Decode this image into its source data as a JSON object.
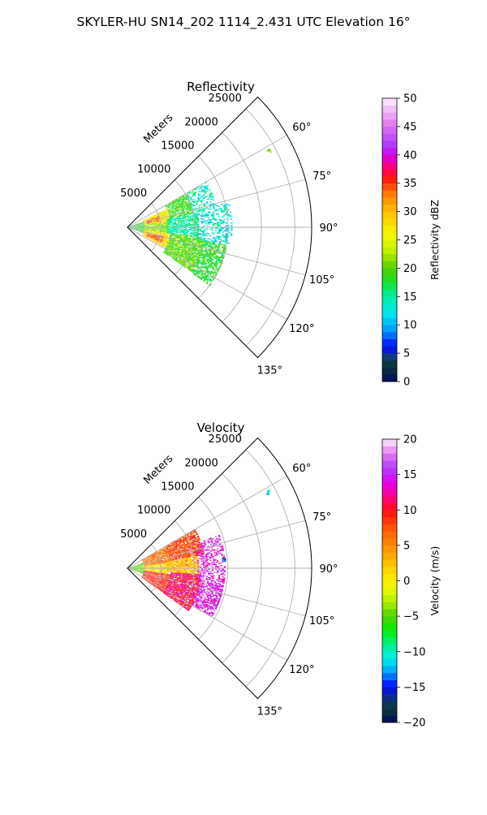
{
  "figure_title": "SKYLER-HU  SN14_202  1114_2.431 UTC Elevation 16°",
  "chart_data": [
    {
      "type": "heatmap",
      "subtype": "polar-sector (PPI)",
      "title": "Reflectivity",
      "radial_label": "Meters",
      "radial_ticks": [
        5000,
        10000,
        15000,
        20000,
        25000
      ],
      "radial_tick_labels": [
        "5000",
        "10000",
        "15000",
        "20000",
        "25000"
      ],
      "rlim": [
        0,
        27500
      ],
      "angle_ticks_deg": [
        60,
        75,
        90,
        105,
        120,
        135
      ],
      "angle_tick_labels": [
        "60°",
        "75°",
        "90°",
        "105°",
        "120°",
        "135°"
      ],
      "thetalim_deg": [
        45,
        135
      ],
      "grid": true,
      "colorbar": {
        "label": "Reflectivity dBZ",
        "min": 0,
        "max": 50,
        "ticks": [
          0,
          5,
          10,
          15,
          20,
          25,
          30,
          35,
          40,
          45,
          50
        ],
        "tick_labels": [
          "0",
          "5",
          "10",
          "15",
          "20",
          "25",
          "30",
          "35",
          "40",
          "45",
          "50"
        ],
        "stops": [
          {
            "v": 0,
            "c": "#050a5a"
          },
          {
            "v": 3,
            "c": "#0a3a3a"
          },
          {
            "v": 5,
            "c": "#1040a0"
          },
          {
            "v": 6,
            "c": "#0000ff"
          },
          {
            "v": 9,
            "c": "#0098ff"
          },
          {
            "v": 12,
            "c": "#00e8f0"
          },
          {
            "v": 15,
            "c": "#00f0a0"
          },
          {
            "v": 18,
            "c": "#20e020"
          },
          {
            "v": 20,
            "c": "#50d000"
          },
          {
            "v": 23,
            "c": "#c0f000"
          },
          {
            "v": 26,
            "c": "#f8f800"
          },
          {
            "v": 30,
            "c": "#ffc000"
          },
          {
            "v": 33,
            "c": "#ff8000"
          },
          {
            "v": 36,
            "c": "#ff1010"
          },
          {
            "v": 38,
            "c": "#ff0080"
          },
          {
            "v": 40,
            "c": "#d000f0"
          },
          {
            "v": 42,
            "c": "#b040ff"
          },
          {
            "v": 45,
            "c": "#e070f0"
          },
          {
            "v": 50,
            "c": "#fff0ff"
          }
        ]
      },
      "regions": [
        {
          "t0": 61,
          "t1": 62,
          "r0": 23500,
          "r1": 24200,
          "v": 21,
          "d": 0.8
        },
        {
          "t0": 70,
          "t1": 110,
          "r0": 0,
          "r1": 2500,
          "v": 18,
          "d": 0.9
        },
        {
          "t0": 65,
          "t1": 82,
          "r0": 2500,
          "r1": 6500,
          "v": 27,
          "d": 0.9
        },
        {
          "t0": 82,
          "t1": 98,
          "r0": 2500,
          "r1": 6000,
          "v": 22,
          "d": 0.9
        },
        {
          "t0": 98,
          "t1": 118,
          "r0": 2500,
          "r1": 6500,
          "v": 28,
          "d": 0.9
        },
        {
          "t0": 70,
          "t1": 80,
          "r0": 3000,
          "r1": 5000,
          "v": 35,
          "d": 0.5
        },
        {
          "t0": 104,
          "t1": 114,
          "r0": 3000,
          "r1": 5500,
          "v": 36,
          "d": 0.6
        },
        {
          "t0": 60,
          "t1": 78,
          "r0": 6500,
          "r1": 10000,
          "v": 19,
          "d": 0.8
        },
        {
          "t0": 78,
          "t1": 98,
          "r0": 6000,
          "r1": 10500,
          "v": 15,
          "d": 0.8
        },
        {
          "t0": 98,
          "t1": 125,
          "r0": 6500,
          "r1": 11500,
          "v": 20,
          "d": 0.85
        },
        {
          "t0": 60,
          "t1": 76,
          "r0": 10000,
          "r1": 13500,
          "v": 14,
          "d": 0.45
        },
        {
          "t0": 76,
          "t1": 100,
          "r0": 10500,
          "r1": 15500,
          "v": 13,
          "d": 0.4
        },
        {
          "t0": 100,
          "t1": 125,
          "r0": 11500,
          "r1": 15000,
          "v": 18,
          "d": 0.7
        }
      ]
    },
    {
      "type": "heatmap",
      "subtype": "polar-sector (PPI)",
      "title": "Velocity",
      "radial_label": "Meters",
      "radial_ticks": [
        5000,
        10000,
        15000,
        20000,
        25000
      ],
      "radial_tick_labels": [
        "5000",
        "10000",
        "15000",
        "20000",
        "25000"
      ],
      "rlim": [
        0,
        27500
      ],
      "angle_ticks_deg": [
        60,
        75,
        90,
        105,
        120,
        135
      ],
      "angle_tick_labels": [
        "60°",
        "75°",
        "90°",
        "105°",
        "120°",
        "135°"
      ],
      "thetalim_deg": [
        45,
        135
      ],
      "grid": true,
      "colorbar": {
        "label": "Velocity (m/s)",
        "min": -20,
        "max": 20,
        "ticks": [
          -20,
          -15,
          -10,
          -5,
          0,
          5,
          10,
          15,
          20
        ],
        "tick_labels": [
          "−20",
          "−15",
          "−10",
          "−5",
          "0",
          "5",
          "10",
          "15",
          "20"
        ],
        "stops": [
          {
            "v": -20,
            "c": "#050a5a"
          },
          {
            "v": -18,
            "c": "#0a3a3a"
          },
          {
            "v": -16,
            "c": "#0a2aa0"
          },
          {
            "v": -15,
            "c": "#0000ff"
          },
          {
            "v": -13,
            "c": "#0098ff"
          },
          {
            "v": -11,
            "c": "#00f0f0"
          },
          {
            "v": -9,
            "c": "#00f090"
          },
          {
            "v": -7,
            "c": "#00f000"
          },
          {
            "v": -5,
            "c": "#50d000"
          },
          {
            "v": -3,
            "c": "#a8f000"
          },
          {
            "v": -1,
            "c": "#f0f800"
          },
          {
            "v": 1,
            "c": "#ffe000"
          },
          {
            "v": 4,
            "c": "#ffa000"
          },
          {
            "v": 7,
            "c": "#ff6000"
          },
          {
            "v": 10,
            "c": "#ff1010"
          },
          {
            "v": 12,
            "c": "#ff0090"
          },
          {
            "v": 14,
            "c": "#e000f0"
          },
          {
            "v": 16,
            "c": "#b040ff"
          },
          {
            "v": 18,
            "c": "#e878f0"
          },
          {
            "v": 20,
            "c": "#fff0ff"
          }
        ]
      },
      "regions": [
        {
          "t0": 61,
          "t1": 62,
          "r0": 23500,
          "r1": 24200,
          "v": -11,
          "d": 0.8
        },
        {
          "t0": 70,
          "t1": 110,
          "r0": 0,
          "r1": 2500,
          "v": -5,
          "d": 0.9
        },
        {
          "t0": 60,
          "t1": 82,
          "r0": 2500,
          "r1": 6500,
          "v": 6,
          "d": 0.9
        },
        {
          "t0": 82,
          "t1": 98,
          "r0": 2500,
          "r1": 6000,
          "v": 1,
          "d": 0.9
        },
        {
          "t0": 98,
          "t1": 124,
          "r0": 2500,
          "r1": 6500,
          "v": 9,
          "d": 0.9
        },
        {
          "t0": 60,
          "t1": 80,
          "r0": 6500,
          "r1": 11500,
          "v": 8,
          "d": 0.85
        },
        {
          "t0": 80,
          "t1": 95,
          "r0": 6000,
          "r1": 10500,
          "v": 3,
          "d": 0.85
        },
        {
          "t0": 95,
          "t1": 125,
          "r0": 6500,
          "r1": 11000,
          "v": 11,
          "d": 0.9
        },
        {
          "t0": 70,
          "t1": 100,
          "r0": 10500,
          "r1": 14500,
          "v": 15,
          "d": 0.5
        },
        {
          "t0": 100,
          "t1": 120,
          "r0": 11000,
          "r1": 14500,
          "v": 15,
          "d": 0.65
        },
        {
          "t0": 84,
          "t1": 86,
          "r0": 14000,
          "r1": 14600,
          "v": -15,
          "d": 0.6
        }
      ]
    }
  ]
}
